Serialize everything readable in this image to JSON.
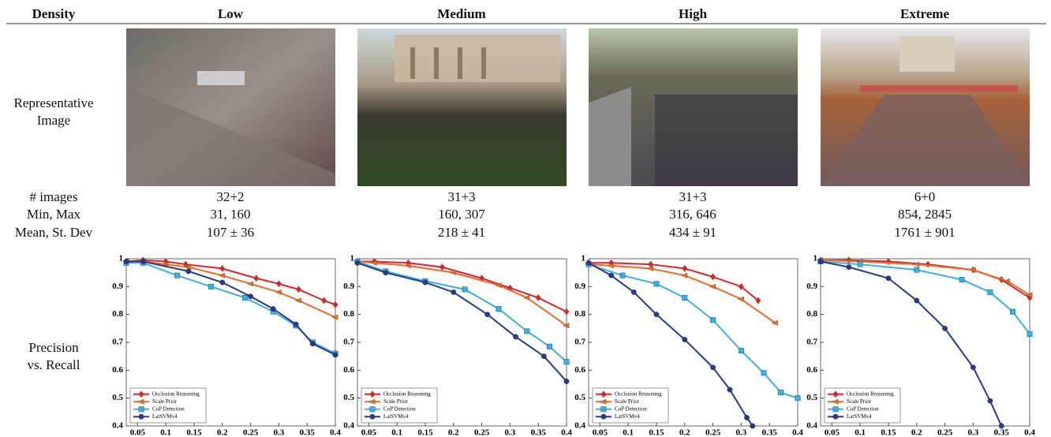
{
  "table": {
    "header": [
      "Density",
      "Low",
      "Medium",
      "High",
      "Extreme"
    ],
    "image_row_label": "Representative Image",
    "rows": [
      [
        "# images",
        "32+2",
        "31+3",
        "31+3",
        "6+0"
      ],
      [
        "Min, Max",
        "31, 160",
        "160, 307",
        "316, 646",
        "854, 2845"
      ],
      [
        "Mean, St. Dev",
        "107 ± 36",
        "218 ± 41",
        "434 ± 91",
        "1761 ± 901"
      ]
    ],
    "chart_row_label": "Precision vs. Recall"
  },
  "chart_data": [
    {
      "type": "line",
      "xlim": [
        0.03,
        0.4
      ],
      "ylim": [
        0.4,
        1
      ],
      "xticks": [
        0.05,
        0.1,
        0.15,
        0.2,
        0.25,
        0.3,
        0.35,
        0.4
      ],
      "yticks": [
        0.4,
        0.5,
        0.6,
        0.7,
        0.8,
        0.9,
        1
      ],
      "legend": "lower left",
      "series": [
        {
          "name": "Occlusion Reasoning",
          "color": "#d8262a",
          "marker": "diamond",
          "x": [
            0.03,
            0.06,
            0.1,
            0.135,
            0.2,
            0.26,
            0.3,
            0.335,
            0.38,
            0.4
          ],
          "values": [
            0.99,
            0.995,
            0.99,
            0.98,
            0.965,
            0.93,
            0.91,
            0.89,
            0.85,
            0.835
          ]
        },
        {
          "name": "Scale Prior",
          "color": "#ea6a2e",
          "marker": "triangle-left",
          "x": [
            0.03,
            0.06,
            0.1,
            0.14,
            0.2,
            0.25,
            0.3,
            0.335,
            0.4
          ],
          "values": [
            0.99,
            0.99,
            0.98,
            0.97,
            0.94,
            0.91,
            0.88,
            0.85,
            0.79
          ]
        },
        {
          "name": "CoP Detection",
          "color": "#3eb0de",
          "marker": "square",
          "x": [
            0.03,
            0.06,
            0.12,
            0.18,
            0.24,
            0.29,
            0.33,
            0.36,
            0.4
          ],
          "values": [
            0.985,
            0.985,
            0.94,
            0.9,
            0.86,
            0.81,
            0.76,
            0.7,
            0.66
          ]
        },
        {
          "name": "LatSVMv4",
          "color": "#283a8c",
          "marker": "circle",
          "x": [
            0.03,
            0.06,
            0.14,
            0.2,
            0.25,
            0.29,
            0.33,
            0.36,
            0.4
          ],
          "values": [
            0.99,
            0.99,
            0.955,
            0.915,
            0.865,
            0.82,
            0.765,
            0.695,
            0.655
          ]
        }
      ]
    },
    {
      "type": "line",
      "xlim": [
        0.03,
        0.4
      ],
      "ylim": [
        0.4,
        1
      ],
      "xticks": [
        0.05,
        0.1,
        0.15,
        0.2,
        0.25,
        0.3,
        0.35,
        0.4
      ],
      "yticks": [
        0.4,
        0.5,
        0.6,
        0.7,
        0.8,
        0.9,
        1
      ],
      "legend": "lower left",
      "series": [
        {
          "name": "Occlusion Reasoning",
          "color": "#d8262a",
          "marker": "diamond",
          "x": [
            0.03,
            0.06,
            0.12,
            0.18,
            0.25,
            0.3,
            0.35,
            0.4
          ],
          "values": [
            0.99,
            0.99,
            0.985,
            0.97,
            0.93,
            0.895,
            0.86,
            0.81
          ]
        },
        {
          "name": "Scale Prior",
          "color": "#ea6a2e",
          "marker": "triangle-left",
          "x": [
            0.03,
            0.06,
            0.12,
            0.2,
            0.28,
            0.33,
            0.4
          ],
          "values": [
            0.99,
            0.985,
            0.975,
            0.95,
            0.905,
            0.86,
            0.76
          ]
        },
        {
          "name": "CoP Detection",
          "color": "#3eb0de",
          "marker": "square",
          "x": [
            0.03,
            0.08,
            0.15,
            0.22,
            0.28,
            0.33,
            0.37,
            0.4
          ],
          "values": [
            0.99,
            0.955,
            0.92,
            0.89,
            0.82,
            0.74,
            0.685,
            0.63
          ]
        },
        {
          "name": "LatSVMv4",
          "color": "#283a8c",
          "marker": "circle",
          "x": [
            0.03,
            0.08,
            0.15,
            0.2,
            0.26,
            0.31,
            0.36,
            0.4
          ],
          "values": [
            0.985,
            0.95,
            0.915,
            0.88,
            0.8,
            0.72,
            0.65,
            0.56
          ]
        }
      ]
    },
    {
      "type": "line",
      "xlim": [
        0.03,
        0.4
      ],
      "ylim": [
        0.4,
        1
      ],
      "xticks": [
        0.05,
        0.1,
        0.15,
        0.2,
        0.25,
        0.3,
        0.35,
        0.4
      ],
      "yticks": [
        0.4,
        0.5,
        0.6,
        0.7,
        0.8,
        0.9,
        1
      ],
      "legend": "lower left",
      "series": [
        {
          "name": "Occlusion Reasoning",
          "color": "#d8262a",
          "marker": "diamond",
          "x": [
            0.03,
            0.07,
            0.14,
            0.2,
            0.25,
            0.3,
            0.33
          ],
          "values": [
            0.985,
            0.985,
            0.98,
            0.965,
            0.935,
            0.9,
            0.85
          ]
        },
        {
          "name": "Scale Prior",
          "color": "#ea6a2e",
          "marker": "triangle-left",
          "x": [
            0.03,
            0.07,
            0.14,
            0.2,
            0.25,
            0.3,
            0.36
          ],
          "values": [
            0.98,
            0.975,
            0.965,
            0.94,
            0.9,
            0.855,
            0.77
          ]
        },
        {
          "name": "CoP Detection",
          "color": "#3eb0de",
          "marker": "square",
          "x": [
            0.03,
            0.09,
            0.15,
            0.2,
            0.25,
            0.3,
            0.34,
            0.37,
            0.4
          ],
          "values": [
            0.98,
            0.94,
            0.91,
            0.86,
            0.78,
            0.67,
            0.59,
            0.52,
            0.5
          ]
        },
        {
          "name": "LatSVMv4",
          "color": "#283a8c",
          "marker": "circle",
          "x": [
            0.03,
            0.07,
            0.11,
            0.15,
            0.2,
            0.25,
            0.28,
            0.31,
            0.32
          ],
          "values": [
            0.985,
            0.94,
            0.88,
            0.8,
            0.71,
            0.61,
            0.53,
            0.43,
            0.4
          ]
        }
      ]
    },
    {
      "type": "line",
      "xlim": [
        0.03,
        0.4
      ],
      "ylim": [
        0.4,
        1
      ],
      "xticks": [
        0.05,
        0.1,
        0.15,
        0.2,
        0.25,
        0.3,
        0.35,
        0.4
      ],
      "yticks": [
        0.4,
        0.5,
        0.6,
        0.7,
        0.8,
        0.9,
        1
      ],
      "legend": "lower left",
      "series": [
        {
          "name": "Occlusion Reasoning",
          "color": "#d8262a",
          "marker": "diamond",
          "x": [
            0.03,
            0.08,
            0.15,
            0.22,
            0.3,
            0.35,
            0.4
          ],
          "values": [
            0.995,
            0.995,
            0.99,
            0.98,
            0.96,
            0.925,
            0.86
          ]
        },
        {
          "name": "Scale Prior",
          "color": "#ea6a2e",
          "marker": "triangle-left",
          "x": [
            0.03,
            0.1,
            0.2,
            0.3,
            0.36,
            0.4
          ],
          "values": [
            0.995,
            0.99,
            0.98,
            0.96,
            0.92,
            0.87
          ]
        },
        {
          "name": "CoP Detection",
          "color": "#3eb0de",
          "marker": "square",
          "x": [
            0.03,
            0.1,
            0.2,
            0.28,
            0.33,
            0.37,
            0.4
          ],
          "values": [
            0.99,
            0.98,
            0.96,
            0.925,
            0.88,
            0.81,
            0.73
          ]
        },
        {
          "name": "LatSVMv4",
          "color": "#283a8c",
          "marker": "circle",
          "x": [
            0.03,
            0.08,
            0.15,
            0.2,
            0.25,
            0.3,
            0.33,
            0.35
          ],
          "values": [
            0.99,
            0.97,
            0.93,
            0.85,
            0.75,
            0.61,
            0.49,
            0.4
          ]
        }
      ]
    }
  ]
}
